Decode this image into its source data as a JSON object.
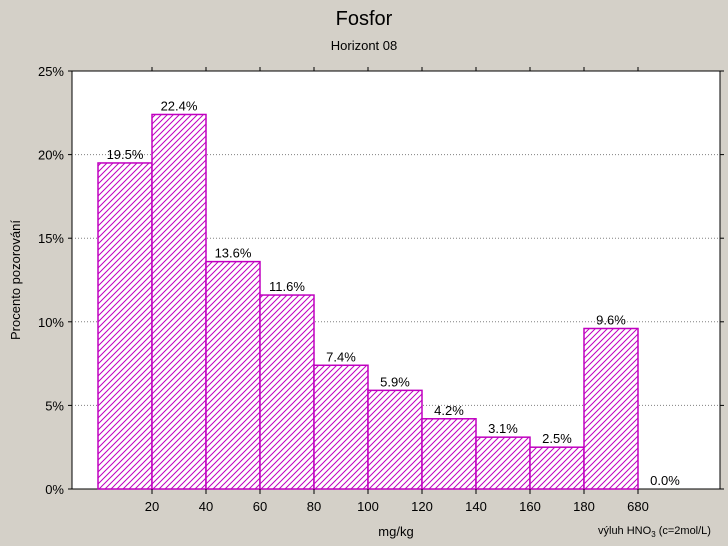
{
  "chart_data": {
    "type": "bar",
    "title": "Fosfor",
    "subtitle": "Horizont 08",
    "xlabel": "mg/kg",
    "ylabel": "Procento pozorování",
    "x_ticks": [
      "20",
      "40",
      "60",
      "80",
      "100",
      "120",
      "140",
      "160",
      "180",
      "680"
    ],
    "y_ticks": [
      "0%",
      "5%",
      "10%",
      "15%",
      "20%",
      "25%"
    ],
    "ylim": [
      0,
      25
    ],
    "values": [
      19.5,
      22.4,
      13.6,
      11.6,
      7.4,
      5.9,
      4.2,
      3.1,
      2.5,
      9.6,
      0.0
    ],
    "labels": [
      "19.5%",
      "22.4%",
      "13.6%",
      "11.6%",
      "7.4%",
      "5.9%",
      "4.2%",
      "3.1%",
      "2.5%",
      "9.6%",
      "0.0%"
    ],
    "grid": true,
    "bar_color": "#c000c0",
    "note": {
      "prefix": "výluh HNO",
      "sub": "3",
      "suffix": " (c=2mol/L)"
    }
  }
}
